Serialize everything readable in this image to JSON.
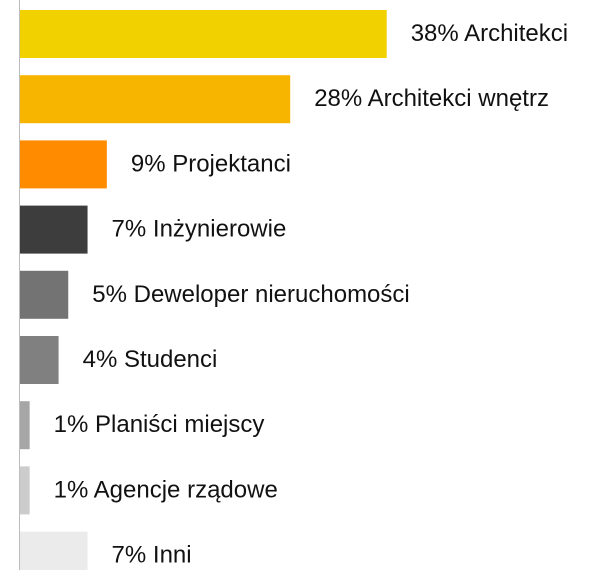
{
  "chart_data": {
    "type": "hbar",
    "categories": [
      "Architekci",
      "Architekci wnętrz",
      "Projektanci",
      "Inżynierowie",
      "Deweloper nieruchomości",
      "Studenci",
      "Planiści miejscy",
      "Agencje rządowe",
      "Inni"
    ],
    "values": [
      38,
      28,
      9,
      7,
      5,
      4,
      1,
      1,
      7
    ],
    "value_labels": [
      "38%",
      "28%",
      "9%",
      "7%",
      "5%",
      "4%",
      "1%",
      "1%",
      "7%"
    ],
    "colors": [
      "#f2d100",
      "#f7b500",
      "#ff8c00",
      "#3d3d3d",
      "#737373",
      "#808080",
      "#a6a6a6",
      "#cccccc",
      "#ebebeb"
    ]
  }
}
